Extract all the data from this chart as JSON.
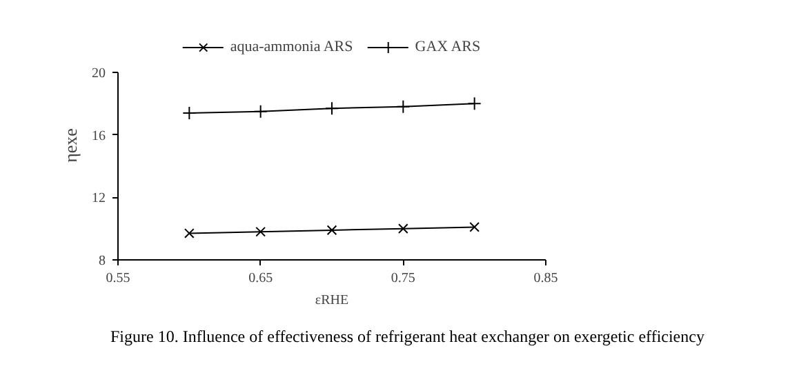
{
  "chart_data": {
    "type": "line",
    "xlabel": "εRHE",
    "ylabel": "ηexe",
    "x": [
      0.6,
      0.65,
      0.7,
      0.75,
      0.8
    ],
    "series": [
      {
        "name": "aqua-ammonia ARS",
        "color": "#000000",
        "marker": "x",
        "values": [
          9.7,
          9.8,
          9.9,
          10.0,
          10.1
        ]
      },
      {
        "name": "GAX ARS",
        "color": "#000000",
        "marker": "cross",
        "values": [
          17.4,
          17.5,
          17.7,
          17.8,
          18.0
        ]
      }
    ],
    "xlim": [
      0.55,
      0.85
    ],
    "xticks": [
      0.55,
      0.65,
      0.75,
      0.85
    ],
    "ylim": [
      8,
      20
    ],
    "yticks": [
      8,
      12,
      16,
      20
    ],
    "grid": false,
    "legend": "top",
    "line_style": "solid",
    "annotations": [
      "Figure 10. Influence of effectiveness of refrigerant heat exchanger on exergetic efficiency"
    ]
  }
}
